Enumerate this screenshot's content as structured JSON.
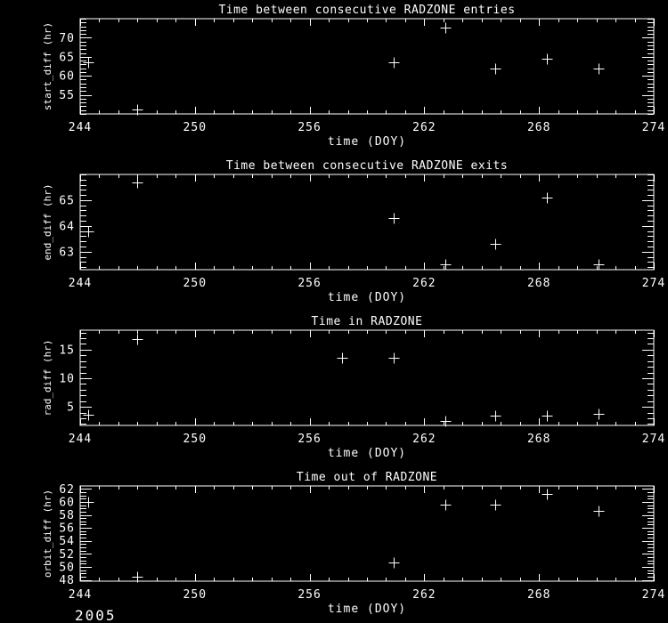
{
  "window": {
    "background_color": "#000000",
    "foreground_color": "#ffffff"
  },
  "year_label": "2005",
  "chart_data": [
    {
      "type": "scatter",
      "title": "Time between consecutive RADZONE entries",
      "xlabel": "time (DOY)",
      "ylabel": "start_diff (hr)",
      "marker": "plus-symbol",
      "grid": "off",
      "xlim": [
        244,
        274
      ],
      "ylim": [
        50,
        75
      ],
      "xticks": [
        244,
        250,
        256,
        262,
        268,
        274
      ],
      "yticks": [
        55,
        60,
        65,
        70
      ],
      "x_minor_step": 1,
      "y_minor_step": 1,
      "points": [
        [
          244.4,
          63.5
        ],
        [
          247.0,
          51.2
        ],
        [
          260.4,
          63.6
        ],
        [
          263.1,
          72.7
        ],
        [
          265.7,
          61.8
        ],
        [
          268.4,
          64.4
        ],
        [
          271.1,
          61.8
        ]
      ]
    },
    {
      "type": "scatter",
      "title": "Time between consecutive RADZONE exits",
      "xlabel": "time (DOY)",
      "ylabel": "end_diff (hr)",
      "marker": "plus-symbol",
      "grid": "off",
      "xlim": [
        244,
        274
      ],
      "ylim": [
        62.3,
        66.0
      ],
      "xticks": [
        244,
        250,
        256,
        262,
        268,
        274
      ],
      "yticks": [
        63,
        64,
        65
      ],
      "x_minor_step": 1,
      "y_minor_step": 0.2,
      "points": [
        [
          244.4,
          63.8
        ],
        [
          247.0,
          65.7
        ],
        [
          260.4,
          64.3
        ],
        [
          263.1,
          62.5
        ],
        [
          265.7,
          63.3
        ],
        [
          268.4,
          65.1
        ],
        [
          271.1,
          62.5
        ]
      ]
    },
    {
      "type": "scatter",
      "title": "Time in RADZONE",
      "xlabel": "time (DOY)",
      "ylabel": "rad_diff (hr)",
      "marker": "plus-symbol",
      "grid": "off",
      "xlim": [
        244,
        274
      ],
      "ylim": [
        1.75,
        18.4
      ],
      "xticks": [
        244,
        250,
        256,
        262,
        268,
        274
      ],
      "yticks": [
        5,
        10,
        15
      ],
      "x_minor_step": 1,
      "y_minor_step": 1,
      "points": [
        [
          244.4,
          3.6
        ],
        [
          247.0,
          16.9
        ],
        [
          257.7,
          13.5
        ],
        [
          260.4,
          13.5
        ],
        [
          263.1,
          2.6
        ],
        [
          265.7,
          3.5
        ],
        [
          268.4,
          3.5
        ],
        [
          271.1,
          3.7
        ]
      ]
    },
    {
      "type": "scatter",
      "title": "Time out of RADZONE",
      "xlabel": "time (DOY)",
      "ylabel": "orbit_diff (hr)",
      "marker": "plus-symbol",
      "grid": "off",
      "xlim": [
        244,
        274
      ],
      "ylim": [
        47.8,
        62.45
      ],
      "xticks": [
        244,
        250,
        256,
        262,
        268,
        274
      ],
      "yticks": [
        48,
        50,
        52,
        54,
        56,
        58,
        60,
        62
      ],
      "x_minor_step": 1,
      "y_minor_step": 0.5,
      "points": [
        [
          244.4,
          60.0
        ],
        [
          247.0,
          48.5
        ],
        [
          260.4,
          50.7
        ],
        [
          263.1,
          59.6
        ],
        [
          265.7,
          59.6
        ],
        [
          268.4,
          61.2
        ],
        [
          271.1,
          58.6
        ]
      ]
    }
  ]
}
